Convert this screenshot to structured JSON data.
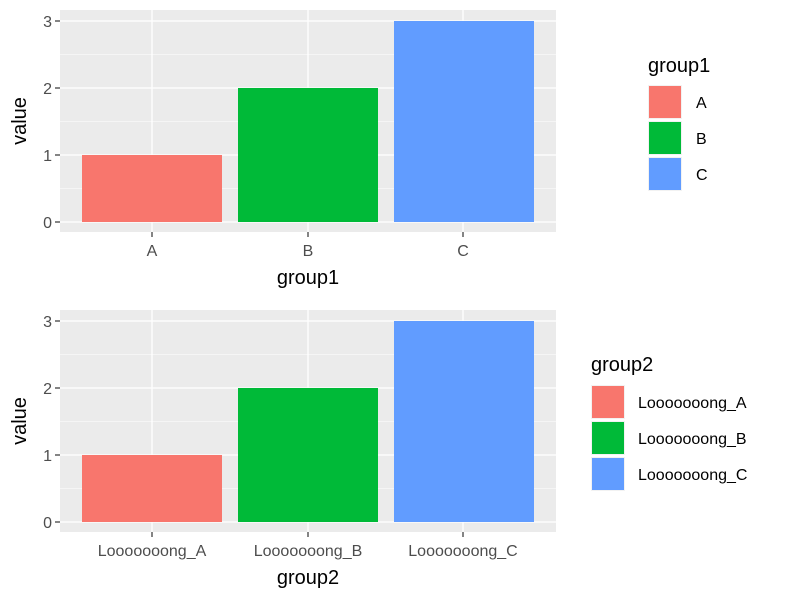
{
  "chart_data": [
    {
      "type": "bar",
      "categories": [
        "A",
        "B",
        "C"
      ],
      "values": [
        1,
        2,
        3
      ],
      "colors": [
        "#F8766D",
        "#00BA38",
        "#619CFF"
      ],
      "xlabel": "group1",
      "ylabel": "value",
      "yticks": [
        "0",
        "1",
        "2",
        "3"
      ],
      "ylim": [
        0,
        3
      ],
      "grid": true,
      "background": "#EBEBEB",
      "legend": {
        "title": "group1",
        "placement": "right",
        "entries": [
          "A",
          "B",
          "C"
        ]
      }
    },
    {
      "type": "bar",
      "categories": [
        "Looooooong_A",
        "Looooooong_B",
        "Looooooong_C"
      ],
      "values": [
        1,
        2,
        3
      ],
      "colors": [
        "#F8766D",
        "#00BA38",
        "#619CFF"
      ],
      "xlabel": "group2",
      "ylabel": "value",
      "yticks": [
        "0",
        "1",
        "2",
        "3"
      ],
      "ylim": [
        0,
        3
      ],
      "grid": true,
      "background": "#EBEBEB",
      "legend": {
        "title": "group2",
        "placement": "right",
        "entries": [
          "Looooooong_A",
          "Looooooong_B",
          "Looooooong_C"
        ]
      }
    }
  ]
}
